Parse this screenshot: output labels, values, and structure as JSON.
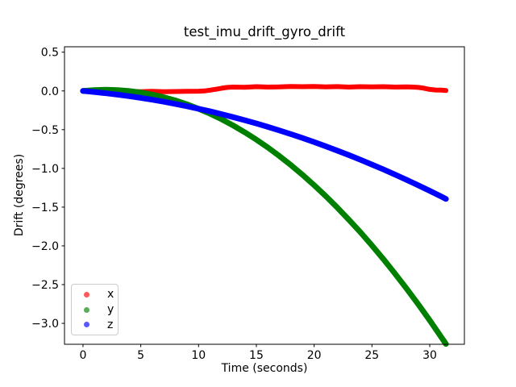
{
  "figure": {
    "background": "#ffffff",
    "text_color": "#000000",
    "spine_color": "#000000",
    "legend_border_color": "#cccccc",
    "legend_marker_alpha": 0.65
  },
  "chart_data": {
    "type": "scatter",
    "title": "test_imu_drift_gyro_drift",
    "xlabel": "Time (seconds)",
    "ylabel": "Drift (degrees)",
    "xlim": [
      -1.6,
      33.0
    ],
    "ylim": [
      -3.27,
      0.57
    ],
    "grid": false,
    "xticks": {
      "values": [
        0,
        5,
        10,
        15,
        20,
        25,
        30
      ],
      "labels": [
        "0",
        "5",
        "10",
        "15",
        "20",
        "25",
        "30"
      ]
    },
    "yticks": {
      "values": [
        0.5,
        0.0,
        -0.5,
        -1.0,
        -1.5,
        -2.0,
        -2.5,
        -3.0
      ],
      "labels": [
        "0.5",
        "0.0",
        "−0.5",
        "−1.0",
        "−1.5",
        "−2.0",
        "−2.5",
        "−3.0"
      ]
    },
    "legend": {
      "position": "lower-left",
      "entries": [
        {
          "label": "x",
          "color": "#ff0000"
        },
        {
          "label": "y",
          "color": "#008000"
        },
        {
          "label": "z",
          "color": "#0000ff"
        }
      ]
    },
    "series": [
      {
        "name": "x",
        "color": "#ff0000",
        "stroke_width": 6,
        "x": [
          0,
          1,
          2,
          3,
          4,
          5,
          6,
          7,
          8,
          9,
          10,
          10.5,
          11,
          11.5,
          12,
          12.5,
          13,
          14,
          15,
          16,
          17,
          18,
          19,
          20,
          21,
          22,
          23,
          24,
          25,
          26,
          27,
          28,
          28.5,
          29,
          29.5,
          30,
          30.5,
          31,
          31.4
        ],
        "y": [
          -0.005,
          -0.01,
          -0.005,
          -0.012,
          -0.006,
          -0.01,
          -0.005,
          -0.01,
          -0.008,
          -0.005,
          -0.003,
          0.0,
          0.01,
          0.022,
          0.035,
          0.045,
          0.05,
          0.048,
          0.055,
          0.05,
          0.052,
          0.058,
          0.055,
          0.057,
          0.052,
          0.056,
          0.05,
          0.055,
          0.052,
          0.055,
          0.05,
          0.052,
          0.05,
          0.045,
          0.035,
          0.02,
          0.012,
          0.01,
          0.005
        ]
      },
      {
        "name": "y",
        "color": "#008000",
        "stroke_width": 7,
        "x": [
          0,
          1,
          2,
          3,
          4,
          5,
          6,
          7,
          8,
          9,
          10,
          11,
          12,
          13,
          14,
          15,
          16,
          17,
          18,
          19,
          20,
          21,
          22,
          23,
          24,
          25,
          26,
          27,
          28,
          29,
          30,
          31,
          31.4
        ],
        "y": [
          0,
          0.011,
          0.015,
          0.011,
          -0.001,
          -0.02,
          -0.047,
          -0.081,
          -0.123,
          -0.173,
          -0.23,
          -0.295,
          -0.367,
          -0.447,
          -0.534,
          -0.629,
          -0.731,
          -0.841,
          -0.959,
          -1.084,
          -1.217,
          -1.357,
          -1.505,
          -1.661,
          -1.824,
          -1.994,
          -2.173,
          -2.359,
          -2.552,
          -2.753,
          -2.961,
          -3.177,
          -3.266
        ]
      },
      {
        "name": "z",
        "color": "#0000ff",
        "stroke_width": 7,
        "x": [
          0,
          1,
          2,
          3,
          4,
          5,
          6,
          7,
          8,
          9,
          10,
          11,
          12,
          13,
          14,
          15,
          16,
          17,
          18,
          19,
          20,
          21,
          22,
          23,
          24,
          25,
          26,
          27,
          28,
          29,
          30,
          31,
          31.4
        ],
        "y": [
          0,
          -0.014,
          -0.03,
          -0.048,
          -0.068,
          -0.09,
          -0.114,
          -0.14,
          -0.168,
          -0.198,
          -0.23,
          -0.264,
          -0.3,
          -0.338,
          -0.378,
          -0.42,
          -0.464,
          -0.51,
          -0.558,
          -0.608,
          -0.66,
          -0.714,
          -0.77,
          -0.828,
          -0.888,
          -0.95,
          -1.014,
          -1.08,
          -1.148,
          -1.218,
          -1.29,
          -1.364,
          -1.394
        ]
      }
    ]
  }
}
